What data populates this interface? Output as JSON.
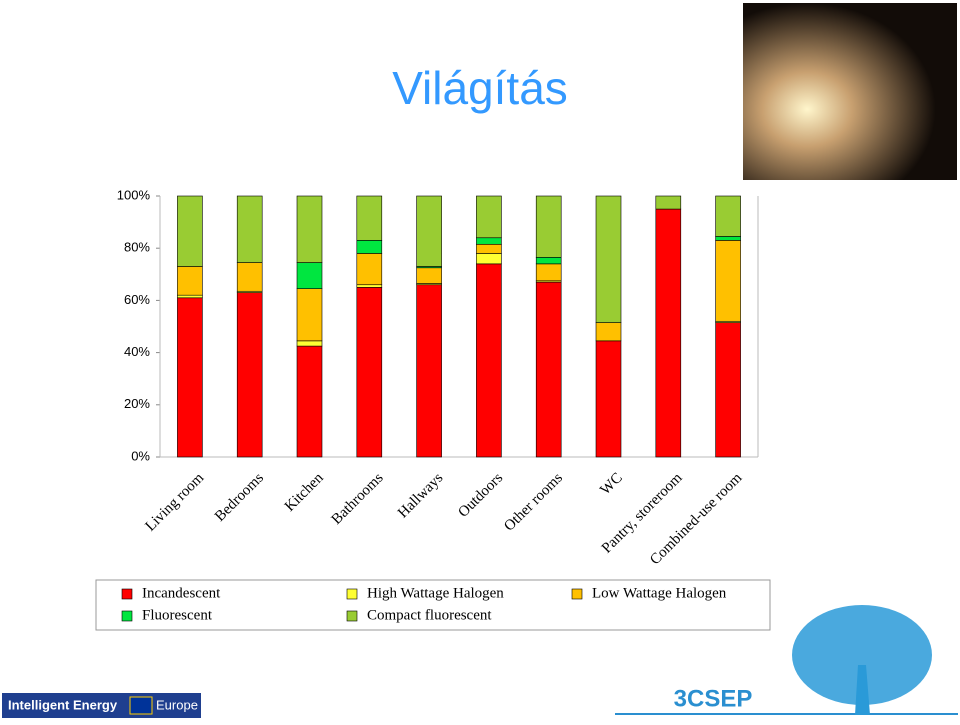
{
  "chart_data": {
    "type": "stacked_bar",
    "title": "Világítás",
    "categories": [
      "Living room",
      "Bedrooms",
      "Kitchen",
      "Bathrooms",
      "Hallways",
      "Outdoors",
      "Other rooms",
      "WC",
      "Pantry, storeroom",
      "Combined-use room"
    ],
    "series": [
      {
        "name": "Incandescent",
        "color": "#ff0000",
        "values": [
          61,
          63,
          42.5,
          65,
          66,
          74,
          67,
          44.5,
          95,
          51.5
        ]
      },
      {
        "name": "High Wattage Halogen",
        "color": "#ffff33",
        "values": [
          1,
          0.5,
          2,
          1,
          0.5,
          4,
          0.5,
          0,
          0,
          0.5
        ]
      },
      {
        "name": "Low Wattage Halogen",
        "color": "#ffc000",
        "values": [
          11,
          11,
          20,
          12,
          6,
          3.5,
          6.5,
          7,
          0,
          31
        ]
      },
      {
        "name": "Fluorescent",
        "color": "#00e640",
        "values": [
          0,
          0,
          10,
          5,
          0.5,
          2.5,
          2.5,
          0,
          0,
          1.5
        ]
      },
      {
        "name": "Compact fluorescent",
        "color": "#99cc33",
        "values": [
          27,
          25.5,
          25.5,
          17,
          27,
          16,
          23.5,
          48.5,
          5,
          15.5
        ]
      }
    ],
    "ylim": [
      0,
      100
    ],
    "yticks": [
      {
        "value": 0,
        "label": "0%"
      },
      {
        "value": 20,
        "label": "20%"
      },
      {
        "value": 40,
        "label": "40%"
      },
      {
        "value": 60,
        "label": "60%"
      },
      {
        "value": 80,
        "label": "80%"
      },
      {
        "value": 100,
        "label": "100%"
      }
    ],
    "legend": "bottom"
  },
  "logos": {
    "program": "Intelligent Energy",
    "region": "Europe",
    "project": "3CSEP"
  }
}
